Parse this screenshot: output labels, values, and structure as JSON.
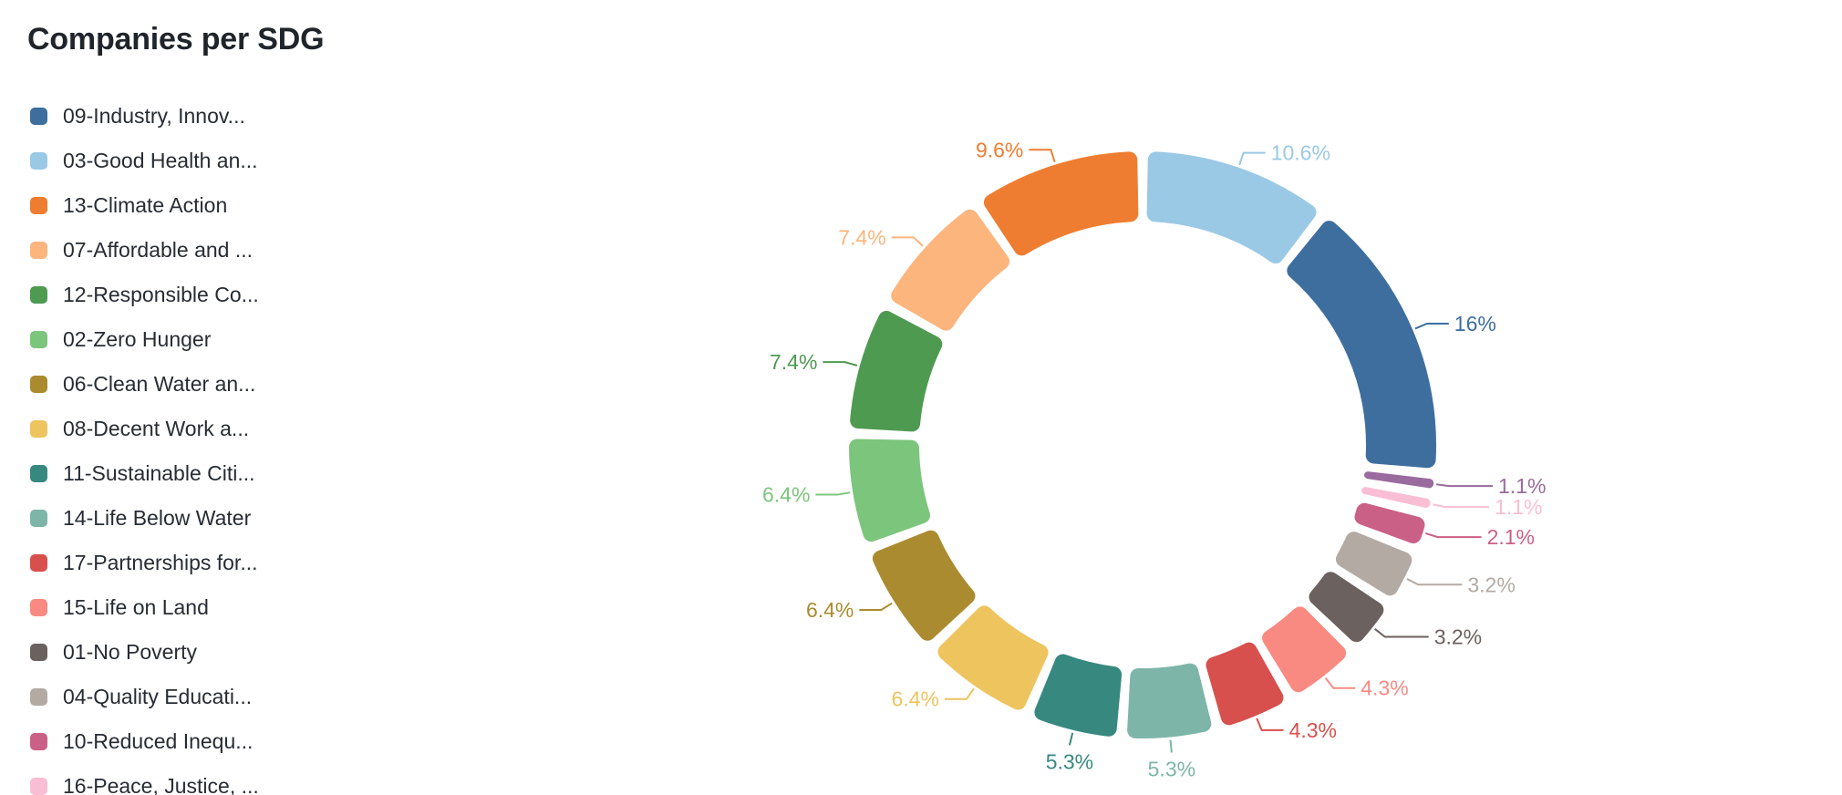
{
  "title": "Companies per SDG",
  "legend": {
    "items": [
      {
        "label": "09-Industry, Innov...",
        "color": "#3d6e9e"
      },
      {
        "label": "03-Good Health an...",
        "color": "#9ac9e6"
      },
      {
        "label": "13-Climate Action",
        "color": "#ee7d31"
      },
      {
        "label": "07-Affordable and ...",
        "color": "#fbb57d"
      },
      {
        "label": "12-Responsible Co...",
        "color": "#4e9a51"
      },
      {
        "label": "02-Zero Hunger",
        "color": "#7cc57c"
      },
      {
        "label": "06-Clean Water an...",
        "color": "#aa8b2f"
      },
      {
        "label": "08-Decent Work a...",
        "color": "#edc45e"
      },
      {
        "label": "11-Sustainable Citi...",
        "color": "#37897f"
      },
      {
        "label": "14-Life Below Water",
        "color": "#7db6a9"
      },
      {
        "label": "17-Partnerships for...",
        "color": "#d8504d"
      },
      {
        "label": "15-Life on Land",
        "color": "#f98a82"
      },
      {
        "label": "01-No Poverty",
        "color": "#6b615e"
      },
      {
        "label": "04-Quality Educati...",
        "color": "#b3aaa4"
      },
      {
        "label": "10-Reduced Inequ...",
        "color": "#cb6086"
      },
      {
        "label": "16-Peace, Justice, ...",
        "color": "#f9bed4"
      }
    ]
  },
  "chart_data": {
    "type": "pie",
    "subtype": "donut",
    "title": "Companies per SDG",
    "unit": "%",
    "legend_position": "left",
    "labels_position": "outside",
    "slices_clockwise_from_top": [
      {
        "name": "03-Good Health an...",
        "value": 10.6,
        "label": "10.6%",
        "color": "#9ac9e6"
      },
      {
        "name": "09-Industry, Innov...",
        "value": 16,
        "label": "16%",
        "color": "#3d6e9e"
      },
      {
        "name": "",
        "value": 1.1,
        "label": "1.1%",
        "color": "#9a6b9e"
      },
      {
        "name": "16-Peace, Justice, ...",
        "value": 1.1,
        "label": "1.1%",
        "color": "#f9bed4"
      },
      {
        "name": "10-Reduced Inequ...",
        "value": 2.1,
        "label": "2.1%",
        "color": "#cb6086"
      },
      {
        "name": "04-Quality Educati...",
        "value": 3.2,
        "label": "3.2%",
        "color": "#b3aaa4"
      },
      {
        "name": "01-No Poverty",
        "value": 3.2,
        "label": "3.2%",
        "color": "#6b615e"
      },
      {
        "name": "15-Life on Land",
        "value": 4.3,
        "label": "4.3%",
        "color": "#f98a82"
      },
      {
        "name": "17-Partnerships for...",
        "value": 4.3,
        "label": "4.3%",
        "color": "#d8504d"
      },
      {
        "name": "14-Life Below Water",
        "value": 5.3,
        "label": "5.3%",
        "color": "#7db6a9"
      },
      {
        "name": "11-Sustainable Citi...",
        "value": 5.3,
        "label": "5.3%",
        "color": "#37897f"
      },
      {
        "name": "08-Decent Work a...",
        "value": 6.4,
        "label": "6.4%",
        "color": "#edc45e"
      },
      {
        "name": "06-Clean Water an...",
        "value": 6.4,
        "label": "6.4%",
        "color": "#aa8b2f"
      },
      {
        "name": "02-Zero Hunger",
        "value": 6.4,
        "label": "6.4%",
        "color": "#7cc57c"
      },
      {
        "name": "12-Responsible Co...",
        "value": 7.4,
        "label": "7.4%",
        "color": "#4e9a51"
      },
      {
        "name": "07-Affordable and ...",
        "value": 7.4,
        "label": "7.4%",
        "color": "#fbb57d"
      },
      {
        "name": "13-Climate Action",
        "value": 9.6,
        "label": "9.6%",
        "color": "#ee7d31"
      }
    ]
  }
}
